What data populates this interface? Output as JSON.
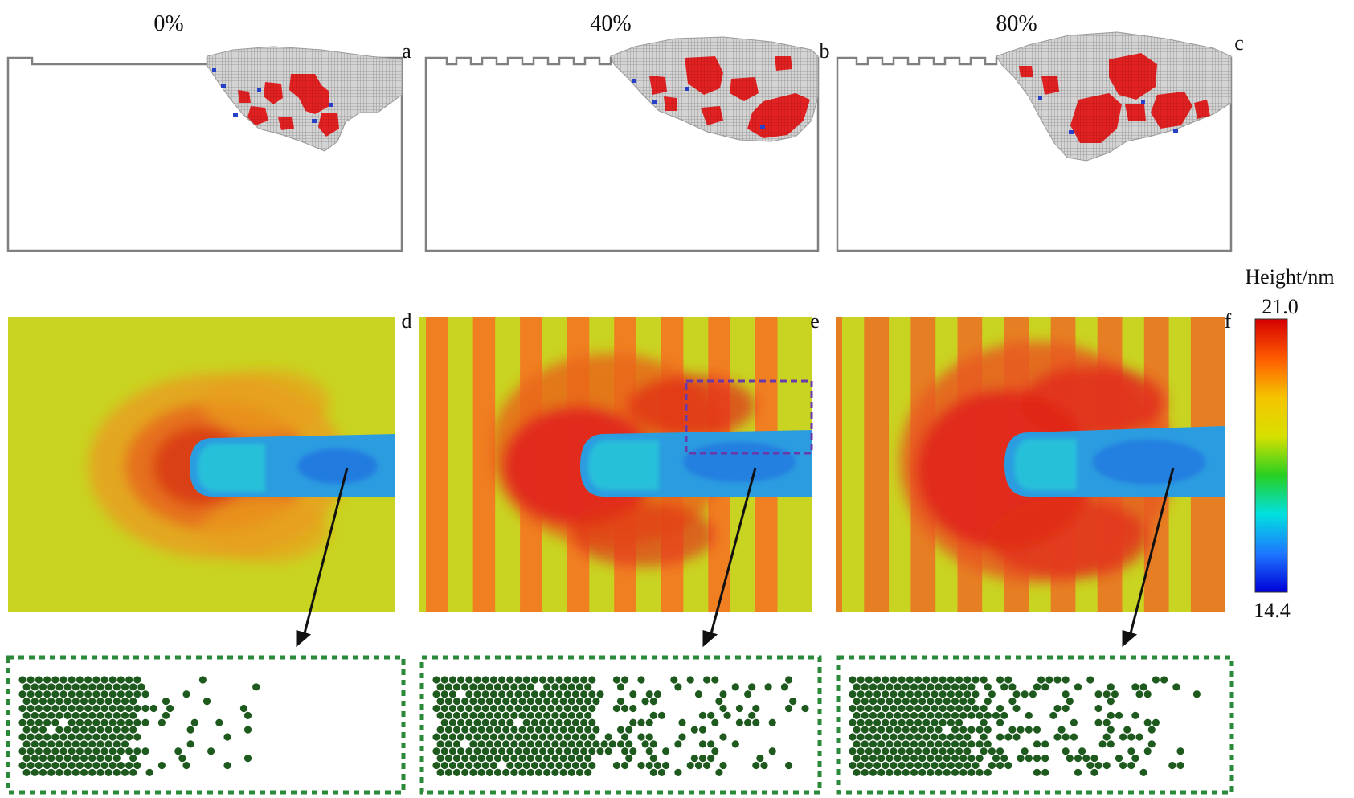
{
  "columns": [
    {
      "percent": "0%",
      "top_letter": "a",
      "mid_letter": "d",
      "groove_count": 0,
      "sulcus_fraction": 0.0
    },
    {
      "percent": "40%",
      "top_letter": "b",
      "mid_letter": "e",
      "groove_count": 8,
      "sulcus_fraction": 0.4
    },
    {
      "percent": "80%",
      "top_letter": "c",
      "mid_letter": "f",
      "groove_count": 8,
      "sulcus_fraction": 0.8
    }
  ],
  "colorbar": {
    "label": "Height/nm",
    "max": "21.0",
    "min": "14.4",
    "stops": [
      "#d40000",
      "#ff5a00",
      "#f5c400",
      "#d8e000",
      "#28d020",
      "#00e0e0",
      "#1e78ff",
      "#0000d8"
    ]
  },
  "colors": {
    "cross_section_outline": "#808080",
    "cross_section_fill": "#b4b4b4",
    "damage_red": "#e02020",
    "dislocation_blue": "#2840c8",
    "base_height": "#c9d321",
    "stripe_high": "#f07f22",
    "pile_up": "#e0281a",
    "scratch_groove": "#2c9ce0",
    "atom_green": "#1e5a1e",
    "inset_border": "#2a8a3a",
    "arrow": "#111111",
    "selection_box": "#6a3aa8"
  }
}
